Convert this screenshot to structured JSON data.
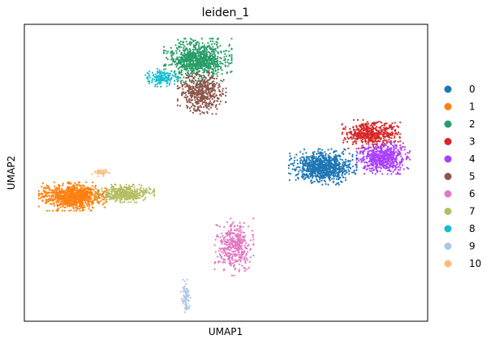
{
  "chart_data": {
    "type": "scatter",
    "title": "leiden_1",
    "xlabel": "UMAP1",
    "ylabel": "UMAP2",
    "ticks": "none",
    "grid": false,
    "legend_position": "right",
    "legend": [
      {
        "label": "0",
        "color": "#1f77b4"
      },
      {
        "label": "1",
        "color": "#ff7f0e"
      },
      {
        "label": "2",
        "color": "#279e68"
      },
      {
        "label": "3",
        "color": "#d62728"
      },
      {
        "label": "4",
        "color": "#aa40fc"
      },
      {
        "label": "5",
        "color": "#8c564b"
      },
      {
        "label": "6",
        "color": "#e377c2"
      },
      {
        "label": "7",
        "color": "#b5bd61"
      },
      {
        "label": "8",
        "color": "#17becf"
      },
      {
        "label": "9",
        "color": "#aec7e8"
      },
      {
        "label": "10",
        "color": "#ffbb78"
      }
    ],
    "clusters": [
      {
        "label": "0",
        "cx": 0.74,
        "cy": 0.52,
        "rx": 0.07,
        "ry": 0.05,
        "n": 900
      },
      {
        "label": "1",
        "cx": 0.12,
        "cy": 0.42,
        "rx": 0.07,
        "ry": 0.04,
        "n": 900
      },
      {
        "label": "2",
        "cx": 0.43,
        "cy": 0.88,
        "rx": 0.07,
        "ry": 0.06,
        "n": 900
      },
      {
        "label": "3",
        "cx": 0.86,
        "cy": 0.63,
        "rx": 0.06,
        "ry": 0.04,
        "n": 500
      },
      {
        "label": "4",
        "cx": 0.89,
        "cy": 0.55,
        "rx": 0.055,
        "ry": 0.045,
        "n": 600
      },
      {
        "label": "5",
        "cx": 0.44,
        "cy": 0.77,
        "rx": 0.05,
        "ry": 0.06,
        "n": 500
      },
      {
        "label": "6",
        "cx": 0.52,
        "cy": 0.25,
        "rx": 0.04,
        "ry": 0.08,
        "n": 400
      },
      {
        "label": "7",
        "cx": 0.25,
        "cy": 0.43,
        "rx": 0.06,
        "ry": 0.025,
        "n": 400
      },
      {
        "label": "8",
        "cx": 0.34,
        "cy": 0.82,
        "rx": 0.035,
        "ry": 0.025,
        "n": 150
      },
      {
        "label": "9",
        "cx": 0.4,
        "cy": 0.08,
        "rx": 0.01,
        "ry": 0.05,
        "n": 80
      },
      {
        "label": "10",
        "cx": 0.19,
        "cy": 0.5,
        "rx": 0.02,
        "ry": 0.01,
        "n": 40
      }
    ]
  }
}
